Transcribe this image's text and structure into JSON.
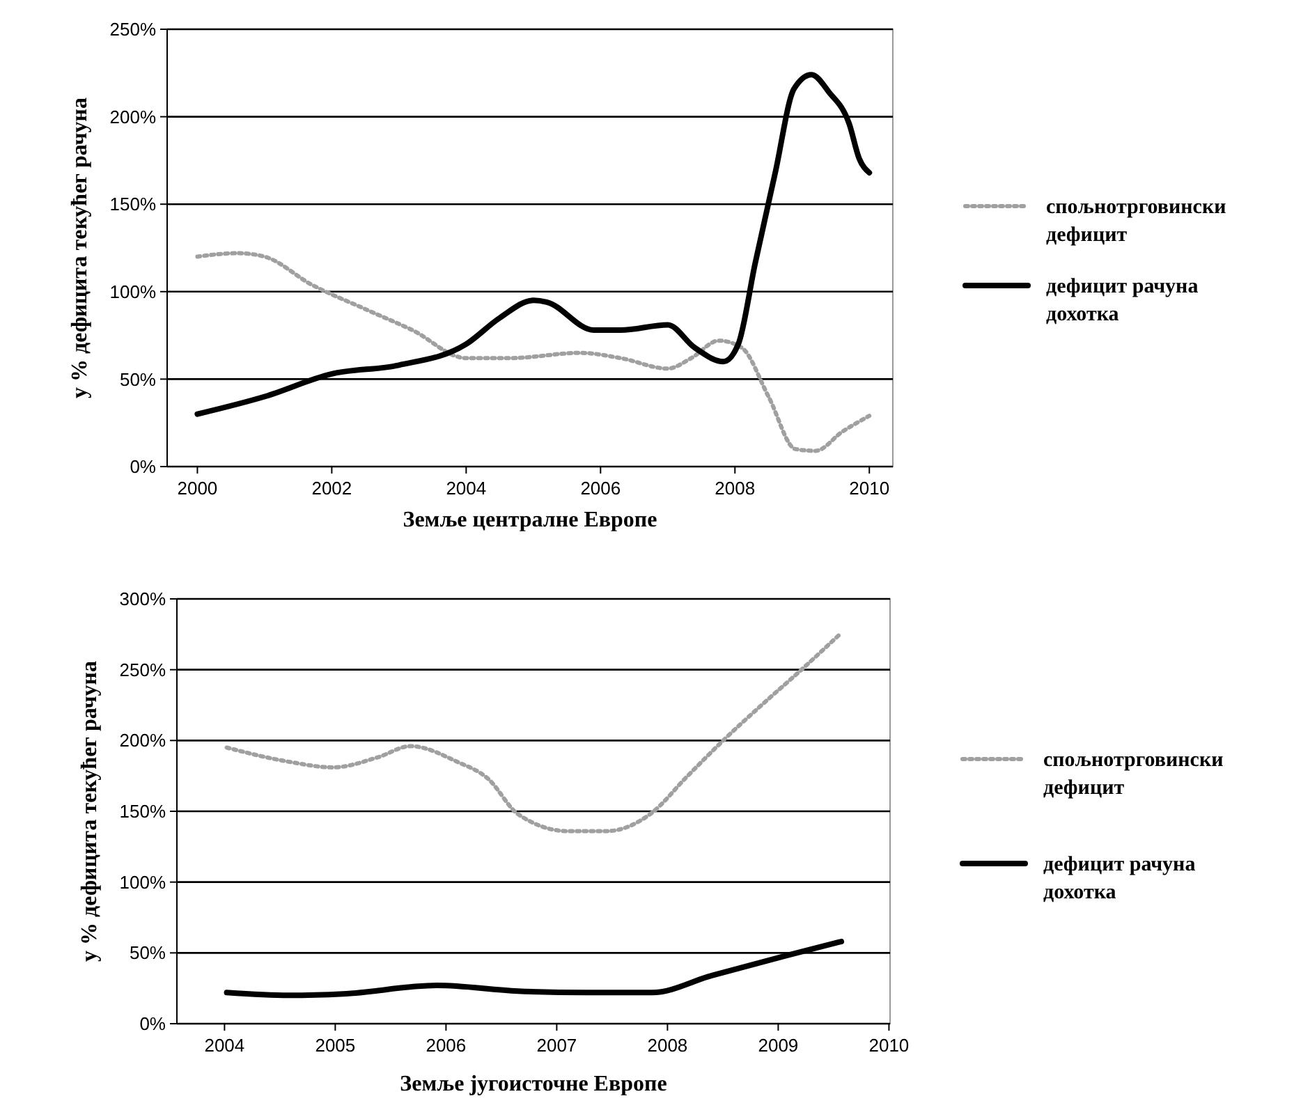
{
  "chart_data": [
    {
      "type": "line",
      "xlabel": "Земље централне Европе",
      "ylabel": "у % дефицита текућег рачуна",
      "xlim": [
        1999.55,
        2010.35
      ],
      "xticks": [
        2000,
        2002,
        2004,
        2006,
        2008,
        2010
      ],
      "ylim": [
        0,
        250
      ],
      "yticks": [
        {
          "value": 0,
          "label": "0%"
        },
        {
          "value": 50,
          "label": "50%"
        },
        {
          "value": 100,
          "label": "100%"
        },
        {
          "value": 150,
          "label": "150%"
        },
        {
          "value": 200,
          "label": "200%"
        },
        {
          "value": 250,
          "label": "250%"
        }
      ],
      "grid": "y",
      "legend": "right",
      "series": [
        {
          "name": "спољнотрговински дефицит",
          "color": "#a0a0a0",
          "line_style": "dotted",
          "x": [
            2000,
            2000.6,
            2001,
            2001.7,
            2002.5,
            2003.2,
            2004,
            2004.65,
            2005.7,
            2006.3,
            2007,
            2007.35,
            2007.76,
            2008.1,
            2008.5,
            2008.9,
            2009.2,
            2009.6,
            2010
          ],
          "values": [
            120,
            122,
            120,
            104,
            90,
            78,
            62,
            62,
            65,
            62,
            56,
            62,
            72,
            68,
            40,
            10,
            9,
            20,
            29
          ]
        },
        {
          "name": "дефицит рачуна дохотка",
          "color": "#000000",
          "line_style": "solid",
          "x": [
            2000,
            2001,
            2002,
            2003,
            2004,
            2004.5,
            2005,
            2005.2,
            2005.9,
            2006.3,
            2007,
            2007.4,
            2007.83,
            2008.05,
            2008.3,
            2008.6,
            2008.88,
            2009.14,
            2009.4,
            2009.7,
            2009.85,
            2010
          ],
          "values": [
            30,
            40,
            53,
            58,
            70,
            85,
            95,
            94,
            78,
            78,
            81,
            68,
            60,
            70,
            116,
            168,
            216,
            224,
            214,
            196,
            176,
            168
          ]
        }
      ]
    },
    {
      "type": "line",
      "xlabel": "Земље југоисточне Европе",
      "ylabel": "у % дефицита текућег рачуна",
      "xlim": [
        2003.57,
        2010.01
      ],
      "xticks": [
        2004,
        2005,
        2006,
        2007,
        2008,
        2009,
        2010
      ],
      "ylim": [
        0,
        300
      ],
      "yticks": [
        {
          "value": 0,
          "label": "0%"
        },
        {
          "value": 50,
          "label": "50%"
        },
        {
          "value": 100,
          "label": "100%"
        },
        {
          "value": 150,
          "label": "150%"
        },
        {
          "value": 200,
          "label": "200%"
        },
        {
          "value": 250,
          "label": "250%"
        },
        {
          "value": 300,
          "label": "300%"
        }
      ],
      "grid": "y",
      "legend": "right",
      "series": [
        {
          "name": "спољнотрговински дефицит",
          "color": "#a0a0a0",
          "line_style": "dotted",
          "x": [
            2004.02,
            2004.58,
            2004.98,
            2005.38,
            2005.68,
            2006.1,
            2006.38,
            2006.65,
            2007.1,
            2007.45,
            2007.86,
            2008.17,
            2008.53,
            2008.85,
            2009.21,
            2009.57
          ],
          "values": [
            195,
            185,
            181,
            188,
            196,
            185,
            173,
            148,
            136,
            136,
            149,
            174,
            202,
            225,
            250,
            276
          ]
        },
        {
          "name": "дефицит рачуна дохотка",
          "color": "#000000",
          "line_style": "solid",
          "x": [
            2004.02,
            2004.58,
            2005.07,
            2005.92,
            2006.65,
            2007.28,
            2007.86,
            2008.4,
            2009.07,
            2009.57
          ],
          "values": [
            22,
            20,
            21,
            27,
            23,
            22,
            22,
            34,
            48,
            58
          ]
        }
      ]
    }
  ]
}
